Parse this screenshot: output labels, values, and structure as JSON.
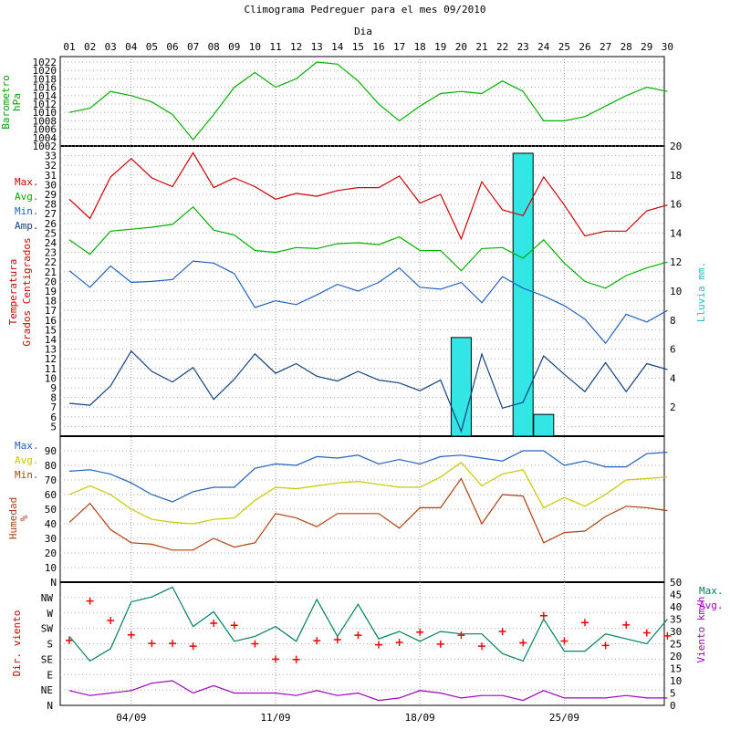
{
  "chart_data": {
    "type": "line",
    "title": "Climograma Pedreguer para el mes 09/2010",
    "x_axis_title": "Dia",
    "days": [
      "01",
      "02",
      "03",
      "04",
      "05",
      "06",
      "07",
      "08",
      "09",
      "10",
      "11",
      "12",
      "13",
      "14",
      "15",
      "16",
      "17",
      "18",
      "19",
      "20",
      "21",
      "22",
      "23",
      "24",
      "25",
      "26",
      "27",
      "28",
      "29",
      "30"
    ],
    "week_labels": [
      "04/09",
      "11/09",
      "18/09",
      "25/09"
    ],
    "week_label_days": [
      4,
      11,
      18,
      25
    ],
    "panels": [
      {
        "id": "barometro",
        "ylabel": [
          "Barometro",
          "hPa"
        ],
        "ylim": [
          1002,
          1022
        ],
        "ticks": [
          1002,
          1004,
          1006,
          1008,
          1010,
          1012,
          1014,
          1016,
          1018,
          1020,
          1022
        ],
        "series": [
          {
            "name": "",
            "color": "#00b000",
            "values": [
              1010,
              1011,
              1015,
              1014,
              1012.5,
              1009.5,
              1003.5,
              1009.5,
              1016,
              1019.5,
              1016,
              1018,
              1022,
              1021.5,
              1017.5,
              1012,
              1008,
              1011.5,
              1014.5,
              1015,
              1014.5,
              1017.5,
              1015,
              1008,
              1008,
              1009,
              1011.5,
              1014,
              1016,
              1015
            ]
          }
        ]
      },
      {
        "id": "temperatura",
        "ylabel": [
          "Temperatura",
          "Grados Centigrados"
        ],
        "ylim": [
          4,
          34
        ],
        "ticks": [
          5,
          6,
          7,
          8,
          9,
          10,
          11,
          12,
          13,
          14,
          15,
          16,
          17,
          18,
          19,
          20,
          21,
          22,
          23,
          24,
          25,
          26,
          27,
          28,
          29,
          30,
          31,
          32,
          33
        ],
        "y2label": "Lluvia mm.",
        "y2lim": [
          0,
          20
        ],
        "y2ticks": [
          2,
          4,
          6,
          8,
          10,
          12,
          14,
          16,
          18,
          20
        ],
        "legend": [
          "Max.",
          "Avg.",
          "Min.",
          "Amp."
        ],
        "rain": {
          "color": "#33e6e6",
          "bars": [
            {
              "day": 20,
              "value": 6.8
            },
            {
              "day": 23,
              "value": 19.5
            },
            {
              "day": 24,
              "value": 1.5
            }
          ]
        },
        "series": [
          {
            "name": "Max.",
            "color": "#d00000",
            "values": [
              28.5,
              26.5,
              30.8,
              32.7,
              30.7,
              29.8,
              33.3,
              29.7,
              30.7,
              29.8,
              28.5,
              29.1,
              28.8,
              29.4,
              29.7,
              29.7,
              30.9,
              28.1,
              29.0,
              24.4,
              30.3,
              27.4,
              26.8,
              30.8,
              27.9,
              24.7,
              25.2,
              25.2,
              27.3,
              27.9
            ]
          },
          {
            "name": "Avg.",
            "color": "#00b000",
            "values": [
              24.3,
              22.8,
              25.2,
              25.4,
              25.6,
              25.9,
              27.7,
              25.3,
              24.8,
              23.2,
              23.0,
              23.5,
              23.4,
              23.9,
              24.0,
              23.8,
              24.6,
              23.2,
              23.2,
              21.1,
              23.4,
              23.5,
              22.4,
              24.3,
              21.9,
              20.0,
              19.3,
              20.6,
              21.4,
              22.0
            ]
          },
          {
            "name": "Min.",
            "color": "#2060c0",
            "values": [
              21.1,
              19.4,
              21.6,
              19.9,
              20.0,
              20.2,
              22.1,
              21.9,
              20.8,
              17.3,
              18.0,
              17.6,
              18.6,
              19.7,
              19.0,
              19.9,
              21.4,
              19.4,
              19.2,
              19.9,
              17.8,
              20.5,
              19.3,
              18.5,
              17.5,
              16.1,
              13.6,
              16.6,
              15.8,
              17.0
            ]
          },
          {
            "name": "Amp.",
            "color": "#104080",
            "values": [
              7.4,
              7.2,
              9.2,
              12.8,
              10.7,
              9.6,
              11.1,
              7.8,
              9.9,
              12.5,
              10.5,
              11.5,
              10.2,
              9.7,
              10.7,
              9.8,
              9.5,
              8.7,
              9.8,
              4.5,
              12.5,
              6.9,
              7.5,
              12.3,
              10.4,
              8.6,
              11.6,
              8.6,
              11.5,
              10.9
            ]
          }
        ]
      },
      {
        "id": "humedad",
        "ylabel": [
          "Humedad",
          "%"
        ],
        "ylim": [
          0,
          100
        ],
        "ticks": [
          10,
          20,
          30,
          40,
          50,
          60,
          70,
          80,
          90
        ],
        "top_label": "N",
        "legend": [
          "Max.",
          "Avg.",
          "Min."
        ],
        "series": [
          {
            "name": "Max.",
            "color": "#2060c0",
            "values": [
              76,
              77,
              74,
              68,
              60,
              55,
              62,
              65,
              65,
              78,
              81,
              80,
              86,
              85,
              87,
              81,
              84,
              81,
              86,
              87,
              85,
              83,
              90,
              90,
              80,
              83,
              79,
              79,
              88,
              89
            ]
          },
          {
            "name": "Avg.",
            "color": "#c8c800",
            "values": [
              60,
              66,
              60,
              50,
              43,
              41,
              40,
              43,
              44,
              56,
              65,
              64,
              66,
              68,
              69,
              67,
              65,
              65,
              72,
              82,
              66,
              74,
              77,
              51,
              58,
              52,
              60,
              70,
              71,
              72
            ]
          },
          {
            "name": "Min.",
            "color": "#b04010",
            "values": [
              41,
              54,
              36,
              27,
              26,
              22,
              22,
              30,
              24,
              27,
              47,
              44,
              38,
              47,
              47,
              47,
              37,
              51,
              51,
              71,
              40,
              60,
              59,
              27,
              34,
              35,
              45,
              52,
              51,
              49
            ]
          }
        ]
      },
      {
        "id": "viento",
        "ylabel": "Dir. viento",
        "dir_ticks": [
          "N",
          "NE",
          "E",
          "SE",
          "S",
          "SW",
          "W",
          "NW"
        ],
        "y2label": "Viento km/h",
        "y2lim": [
          0,
          50
        ],
        "y2ticks": [
          0,
          5,
          10,
          15,
          20,
          25,
          30,
          35,
          40,
          45,
          50
        ],
        "legend": [
          "Max.",
          "Avg."
        ],
        "direction": {
          "color": "#ee0000",
          "values": [
            190,
            305,
            248,
            206,
            181,
            181,
            173,
            240,
            234,
            180,
            135,
            134,
            189,
            192,
            205,
            177,
            184,
            214,
            179,
            205,
            173,
            216,
            183,
            262,
            188,
            242,
            175,
            235,
            212,
            203
          ]
        },
        "series": [
          {
            "name": "Max.",
            "color": "#008060",
            "values": [
              28,
              18,
              23,
              42,
              44,
              48,
              32,
              38,
              26,
              28,
              32,
              26,
              43,
              28,
              41,
              27,
              30,
              26,
              30,
              29,
              29,
              21,
              18,
              35,
              22,
              22,
              29,
              27,
              25,
              35
            ]
          },
          {
            "name": "Avg.",
            "color": "#a000c0",
            "values": [
              6,
              4,
              5,
              6,
              9,
              10,
              5,
              8,
              5,
              5,
              5,
              4,
              6,
              4,
              5,
              2,
              3,
              6,
              5,
              3,
              4,
              4,
              2,
              6,
              3,
              3,
              3,
              4,
              3,
              3
            ]
          }
        ]
      }
    ]
  }
}
